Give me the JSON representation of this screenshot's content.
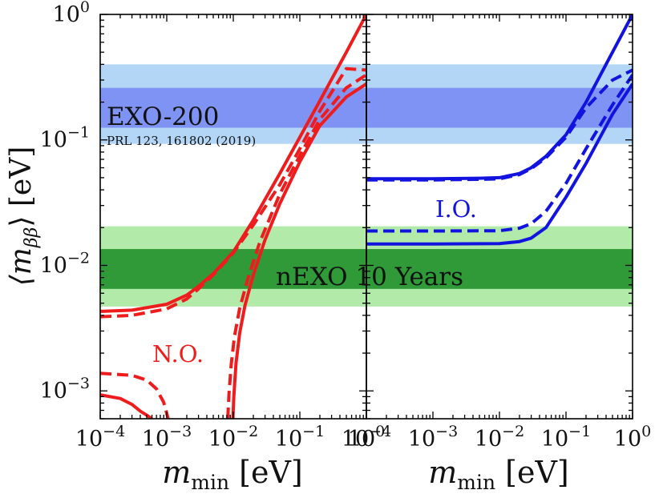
{
  "chart_data": {
    "type": "line",
    "scale": "log-log",
    "xlim": [
      0.0001,
      1
    ],
    "ylim": [
      0.0006,
      1
    ],
    "y_label": {
      "base": "⟨m",
      "sub": "ββ",
      "close": "⟩",
      "unit": " [eV]"
    },
    "x_label": {
      "base": "m",
      "sub": "min",
      "unit": " [eV]"
    },
    "x_ticks": [
      {
        "value": 0.0001,
        "base": "10",
        "exp": "−4"
      },
      {
        "value": 0.001,
        "base": "10",
        "exp": "−3"
      },
      {
        "value": 0.01,
        "base": "10",
        "exp": "−2"
      },
      {
        "value": 0.1,
        "base": "10",
        "exp": "−1"
      },
      {
        "value": 1,
        "base": "10",
        "exp": "0"
      }
    ],
    "y_ticks": [
      {
        "value": 0.001,
        "base": "10",
        "exp": "−3"
      },
      {
        "value": 0.01,
        "base": "10",
        "exp": "−2"
      },
      {
        "value": 0.1,
        "base": "10",
        "exp": "−1"
      },
      {
        "value": 1,
        "base": "10",
        "exp": "0"
      }
    ],
    "bands": [
      {
        "name": "EXO-200 outer",
        "range": [
          0.093,
          0.4
        ],
        "color": "#b3d6f7"
      },
      {
        "name": "EXO-200 inner",
        "range": [
          0.125,
          0.26
        ],
        "color": "#7f93f5"
      },
      {
        "name": "nEXO outer",
        "range": [
          0.0047,
          0.0205
        ],
        "color": "#b1eaa9"
      },
      {
        "name": "nEXO inner",
        "range": [
          0.0065,
          0.0135
        ],
        "color": "#2f9a37"
      }
    ],
    "annotations": {
      "exo_label": "EXO-200",
      "exo_ref": "PRL 123, 161802 (2019)",
      "nexo_label": "nEXO 10 Years",
      "no_label": "N.O.",
      "io_label": "I.O."
    },
    "colors": {
      "normal": "#ee1c1c",
      "inverted": "#1313e0",
      "axis": "#000000"
    },
    "panels": [
      {
        "name": "normal-ordering",
        "series": [
          {
            "name": "NO upper solid",
            "dash": false,
            "color": "#ee1c1c",
            "points": [
              [
                0.0001,
                0.0043
              ],
              [
                0.0003,
                0.0044
              ],
              [
                0.001,
                0.0049
              ],
              [
                0.002,
                0.0058
              ],
              [
                0.003,
                0.0068
              ],
              [
                0.005,
                0.0086
              ],
              [
                0.01,
                0.0128
              ],
              [
                0.02,
                0.023
              ],
              [
                0.05,
                0.054
              ],
              [
                0.1,
                0.105
              ],
              [
                0.2,
                0.205
              ],
              [
                0.5,
                0.5
              ],
              [
                1,
                1
              ]
            ]
          },
          {
            "name": "NO upper dashed",
            "dash": true,
            "color": "#ee1c1c",
            "points": [
              [
                0.0001,
                0.0039
              ],
              [
                0.0003,
                0.004
              ],
              [
                0.001,
                0.0045
              ],
              [
                0.002,
                0.0054
              ],
              [
                0.003,
                0.0065
              ],
              [
                0.005,
                0.0084
              ],
              [
                0.01,
                0.0126
              ],
              [
                0.02,
                0.021
              ],
              [
                0.05,
                0.044
              ],
              [
                0.1,
                0.085
              ],
              [
                0.2,
                0.17
              ],
              [
                0.5,
                0.37
              ],
              [
                1,
                0.36
              ]
            ]
          },
          {
            "name": "NO lower solid",
            "dash": false,
            "color": "#ee1c1c",
            "points": [
              [
                0.00986,
                0.0006
              ],
              [
                0.0102,
                0.00091
              ],
              [
                0.011,
                0.00166
              ],
              [
                0.0125,
                0.0029
              ],
              [
                0.015,
                0.0048
              ],
              [
                0.02,
                0.0084
              ],
              [
                0.03,
                0.016
              ],
              [
                0.05,
                0.031
              ],
              [
                0.1,
                0.067
              ],
              [
                0.2,
                0.13
              ],
              [
                0.5,
                0.22
              ],
              [
                1,
                0.28
              ]
            ]
          },
          {
            "name": "NO lower dashed",
            "dash": true,
            "color": "#ee1c1c",
            "points": [
              [
                0.00825,
                0.0006
              ],
              [
                0.0086,
                0.00094
              ],
              [
                0.0093,
                0.00162
              ],
              [
                0.0104,
                0.0027
              ],
              [
                0.0124,
                0.0045
              ],
              [
                0.0165,
                0.0078
              ],
              [
                0.025,
                0.0153
              ],
              [
                0.05,
                0.037
              ],
              [
                0.1,
                0.075
              ],
              [
                0.2,
                0.146
              ],
              [
                0.5,
                0.26
              ],
              [
                1,
                0.33
              ]
            ]
          },
          {
            "name": "NO cancellation solid",
            "dash": false,
            "color": "#ee1c1c",
            "points": [
              [
                0.0001,
                0.00093
              ],
              [
                0.0002,
                0.00087
              ],
              [
                0.0003,
                0.00078
              ],
              [
                0.0004,
                0.00069
              ],
              [
                0.0005,
                0.00064
              ],
              [
                0.0006,
                0.0006
              ]
            ]
          },
          {
            "name": "NO cancellation dashed",
            "dash": true,
            "color": "#ee1c1c",
            "points": [
              [
                0.0001,
                0.00138
              ],
              [
                0.0003,
                0.00133
              ],
              [
                0.0005,
                0.00122
              ],
              [
                0.0007,
                0.00104
              ],
              [
                0.0009,
                0.00081
              ],
              [
                0.00105,
                0.0006
              ]
            ]
          }
        ]
      },
      {
        "name": "inverted-ordering",
        "series": [
          {
            "name": "IO upper solid",
            "dash": false,
            "color": "#1313e0",
            "points": [
              [
                0.0001,
                0.049
              ],
              [
                0.001,
                0.049
              ],
              [
                0.005,
                0.0495
              ],
              [
                0.01,
                0.05
              ],
              [
                0.02,
                0.054
              ],
              [
                0.03,
                0.06
              ],
              [
                0.05,
                0.074
              ],
              [
                0.1,
                0.11
              ],
              [
                0.2,
                0.2
              ],
              [
                0.5,
                0.5
              ],
              [
                1,
                1
              ]
            ]
          },
          {
            "name": "IO upper dashed",
            "dash": true,
            "color": "#1313e0",
            "points": [
              [
                0.0001,
                0.048
              ],
              [
                0.001,
                0.048
              ],
              [
                0.005,
                0.0485
              ],
              [
                0.01,
                0.049
              ],
              [
                0.02,
                0.053
              ],
              [
                0.03,
                0.059
              ],
              [
                0.05,
                0.072
              ],
              [
                0.1,
                0.105
              ],
              [
                0.2,
                0.18
              ],
              [
                0.5,
                0.3
              ],
              [
                1,
                0.36
              ]
            ]
          },
          {
            "name": "IO lower dashed",
            "dash": true,
            "color": "#1313e0",
            "points": [
              [
                0.0001,
                0.0188
              ],
              [
                0.001,
                0.0188
              ],
              [
                0.01,
                0.0189
              ],
              [
                0.02,
                0.0198
              ],
              [
                0.03,
                0.0215
              ],
              [
                0.05,
                0.027
              ],
              [
                0.1,
                0.045
              ],
              [
                0.2,
                0.085
              ],
              [
                0.5,
                0.19
              ],
              [
                1,
                0.33
              ]
            ]
          },
          {
            "name": "IO lower solid",
            "dash": false,
            "color": "#1313e0",
            "points": [
              [
                0.0001,
                0.0148
              ],
              [
                0.001,
                0.0148
              ],
              [
                0.01,
                0.0149
              ],
              [
                0.02,
                0.0155
              ],
              [
                0.03,
                0.0165
              ],
              [
                0.05,
                0.02
              ],
              [
                0.1,
                0.035
              ],
              [
                0.2,
                0.065
              ],
              [
                0.5,
                0.16
              ],
              [
                1,
                0.28
              ]
            ]
          }
        ]
      }
    ]
  }
}
